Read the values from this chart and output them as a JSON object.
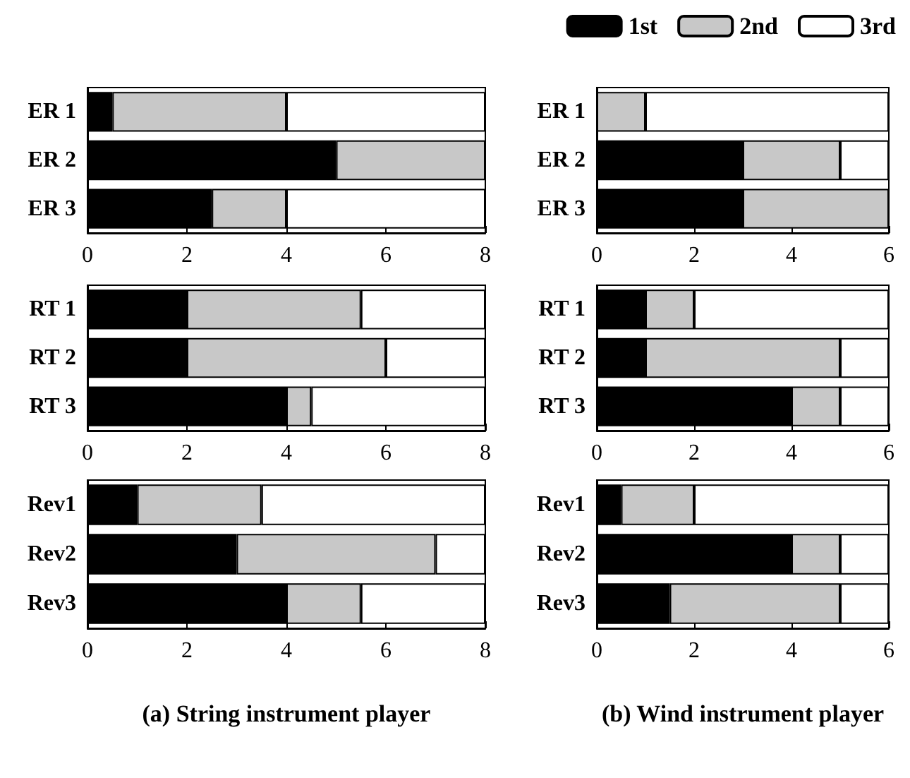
{
  "chart_data": [
    {
      "type": "bar",
      "orientation": "horizontal",
      "stacked": true,
      "categories": [
        "ER 1",
        "ER 2",
        "ER 3"
      ],
      "xlim": [
        0,
        8
      ],
      "xticks": [
        0,
        2,
        4,
        6,
        8
      ],
      "series": [
        {
          "color": "#000000",
          "values": [
            0.5,
            5,
            2.5
          ]
        },
        {
          "color": "#c8c8c8",
          "values": [
            3.5,
            3,
            1.5
          ]
        },
        {
          "color": "#ffffff",
          "values": [
            4,
            0,
            4
          ]
        }
      ]
    },
    {
      "type": "bar",
      "orientation": "horizontal",
      "stacked": true,
      "categories": [
        "ER 1",
        "ER 2",
        "ER 3"
      ],
      "xlim": [
        0,
        6
      ],
      "xticks": [
        0,
        2,
        4,
        6
      ],
      "legend": "top right",
      "series": [
        {
          "name": "1st",
          "color": "#000000",
          "values": [
            0,
            3,
            3
          ]
        },
        {
          "name": "2nd",
          "color": "#c8c8c8",
          "values": [
            1,
            2,
            3
          ]
        },
        {
          "name": "3rd",
          "color": "#ffffff",
          "values": [
            5,
            1,
            0
          ]
        }
      ]
    },
    {
      "type": "bar",
      "orientation": "horizontal",
      "stacked": true,
      "categories": [
        "RT 1",
        "RT 2",
        "RT 3"
      ],
      "xlim": [
        0,
        8
      ],
      "xticks": [
        0,
        2,
        4,
        6,
        8
      ],
      "series": [
        {
          "color": "#000000",
          "values": [
            2,
            2,
            4
          ]
        },
        {
          "color": "#c8c8c8",
          "values": [
            3.5,
            4,
            0.5
          ]
        },
        {
          "color": "#ffffff",
          "values": [
            2.5,
            2,
            3.5
          ]
        }
      ]
    },
    {
      "type": "bar",
      "orientation": "horizontal",
      "stacked": true,
      "categories": [
        "RT 1",
        "RT 2",
        "RT 3"
      ],
      "xlim": [
        0,
        6
      ],
      "xticks": [
        0,
        2,
        4,
        6
      ],
      "series": [
        {
          "color": "#000000",
          "values": [
            1,
            1,
            4
          ]
        },
        {
          "color": "#c8c8c8",
          "values": [
            1,
            4,
            1
          ]
        },
        {
          "color": "#ffffff",
          "values": [
            4,
            1,
            1
          ]
        }
      ]
    },
    {
      "type": "bar",
      "orientation": "horizontal",
      "stacked": true,
      "categories": [
        "Rev1",
        "Rev2",
        "Rev3"
      ],
      "xlim": [
        0,
        8
      ],
      "xticks": [
        0,
        2,
        4,
        6,
        8
      ],
      "xlabel": "(a) String instrument player",
      "series": [
        {
          "color": "#000000",
          "values": [
            1,
            3,
            4
          ]
        },
        {
          "color": "#c8c8c8",
          "values": [
            2.5,
            4,
            1.5
          ]
        },
        {
          "color": "#ffffff",
          "values": [
            4.5,
            1,
            2.5
          ]
        }
      ]
    },
    {
      "type": "bar",
      "orientation": "horizontal",
      "stacked": true,
      "categories": [
        "Rev1",
        "Rev2",
        "Rev3"
      ],
      "xlim": [
        0,
        6
      ],
      "xticks": [
        0,
        2,
        4,
        6
      ],
      "xlabel": "(b) Wind instrument player",
      "series": [
        {
          "color": "#000000",
          "values": [
            0.5,
            4,
            1.5
          ]
        },
        {
          "color": "#c8c8c8",
          "values": [
            1.5,
            1,
            3.5
          ]
        },
        {
          "color": "#ffffff",
          "values": [
            4,
            1,
            1
          ]
        }
      ]
    }
  ]
}
